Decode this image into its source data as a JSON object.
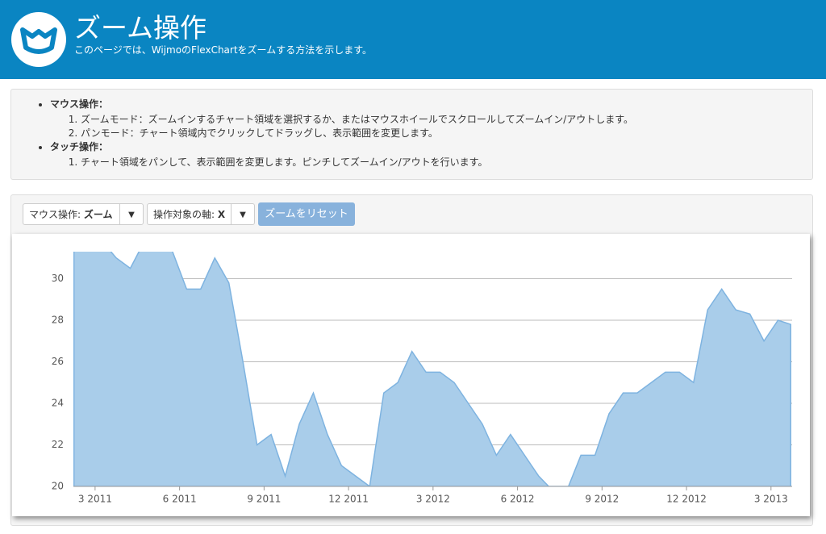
{
  "header": {
    "title": "ズーム操作",
    "subtitle": "このページでは、WijmoのFlexChartをズームする方法を示します。"
  },
  "instructions": [
    {
      "heading": "マウス操作：",
      "steps": [
        "ズームモード：ズームインするチャート領域を選択するか、またはマウスホイールでスクロールしてズームイン/アウトします。",
        "パンモード：チャート領域内でクリックしてドラッグし、表示範囲を変更します。"
      ]
    },
    {
      "heading": "タッチ操作：",
      "steps": [
        "チャート領域をパンして、表示範囲を変更します。ピンチしてズームイン/アウトを行います。"
      ]
    }
  ],
  "controls": {
    "mouse_label": "マウス操作:",
    "mouse_value": "ズーム",
    "axis_label": "操作対象の軸:",
    "axis_value": "X",
    "reset": "ズームをリセット"
  },
  "chart_data": {
    "type": "area",
    "color": "#a9cdea",
    "line_color": "#7eb3e0",
    "grid": true,
    "x": [
      2.25,
      2.75,
      3.25,
      3.75,
      4.25,
      4.75,
      5.25,
      5.75,
      6.25,
      6.75,
      7.25,
      7.75,
      8.25,
      8.75,
      9.25,
      9.75,
      10.25,
      10.75,
      11.25,
      11.75,
      12.25,
      12.75,
      13.25,
      13.75,
      14.25,
      14.75,
      15.25,
      15.75,
      16.25,
      16.75,
      17.25,
      17.75,
      18.25,
      18.75,
      19.25,
      19.75,
      20.25,
      20.75,
      21.25,
      21.75,
      22.25,
      22.75,
      23.25,
      23.75,
      24.25,
      24.75,
      25.25,
      25.75,
      26.25,
      26.75,
      27.25,
      27.7
    ],
    "values": [
      31.8,
      31.8,
      31.8,
      31.0,
      30.5,
      31.8,
      31.8,
      31.3,
      29.5,
      29.5,
      31.0,
      29.8,
      26.0,
      22.0,
      22.5,
      20.5,
      23.0,
      24.5,
      22.5,
      21.0,
      20.5,
      20.0,
      24.5,
      25.0,
      26.5,
      25.5,
      25.5,
      25.0,
      24.0,
      23.0,
      21.5,
      22.5,
      21.5,
      20.5,
      19.8,
      19.8,
      21.5,
      21.5,
      23.5,
      24.5,
      24.5,
      25.0,
      25.5,
      25.5,
      25.0,
      28.5,
      29.5,
      28.5,
      28.3,
      27.0,
      28.0,
      27.8
    ],
    "xlim": [
      2.23,
      27.75
    ],
    "xticks": [
      {
        "value": 3,
        "label": "3 2011"
      },
      {
        "value": 6,
        "label": "6 2011"
      },
      {
        "value": 9,
        "label": "9 2011"
      },
      {
        "value": 12,
        "label": "12 2011"
      },
      {
        "value": 15,
        "label": "3 2012"
      },
      {
        "value": 18,
        "label": "6 2012"
      },
      {
        "value": 21,
        "label": "9 2012"
      },
      {
        "value": 24,
        "label": "12 2012"
      },
      {
        "value": 27,
        "label": "3 2013"
      }
    ],
    "ylim": [
      20,
      31.3
    ],
    "yticks": [
      20,
      22,
      24,
      26,
      28,
      30
    ]
  }
}
